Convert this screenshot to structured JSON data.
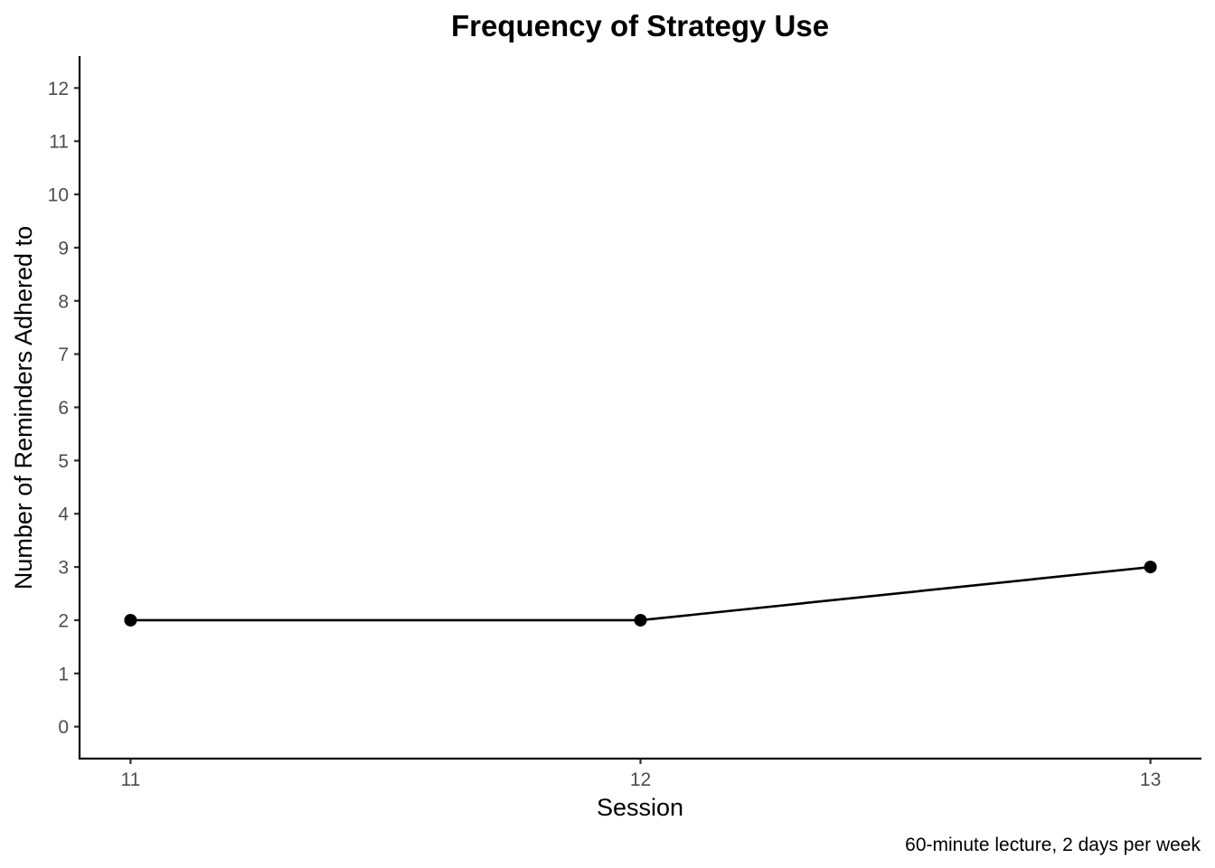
{
  "chart_data": {
    "type": "line",
    "title": "Frequency of Strategy Use",
    "xlabel": "Session",
    "ylabel": "Number of Reminders Adhered to",
    "caption": "60-minute lecture, 2 days per week",
    "x": [
      11,
      12,
      13
    ],
    "series": [
      {
        "values": [
          2,
          2,
          3
        ]
      }
    ],
    "x_ticks": [
      "11",
      "12",
      "13"
    ],
    "y_ticks": [
      "0",
      "1",
      "2",
      "3",
      "4",
      "5",
      "6",
      "7",
      "8",
      "9",
      "10",
      "11",
      "12"
    ],
    "xlim": [
      10.9,
      13.1
    ],
    "ylim": [
      -0.6,
      12.6
    ],
    "grid": false,
    "legend": "none",
    "colors": {
      "line": "#000000",
      "point": "#000000",
      "tick_label": "#4d4d4d"
    }
  }
}
